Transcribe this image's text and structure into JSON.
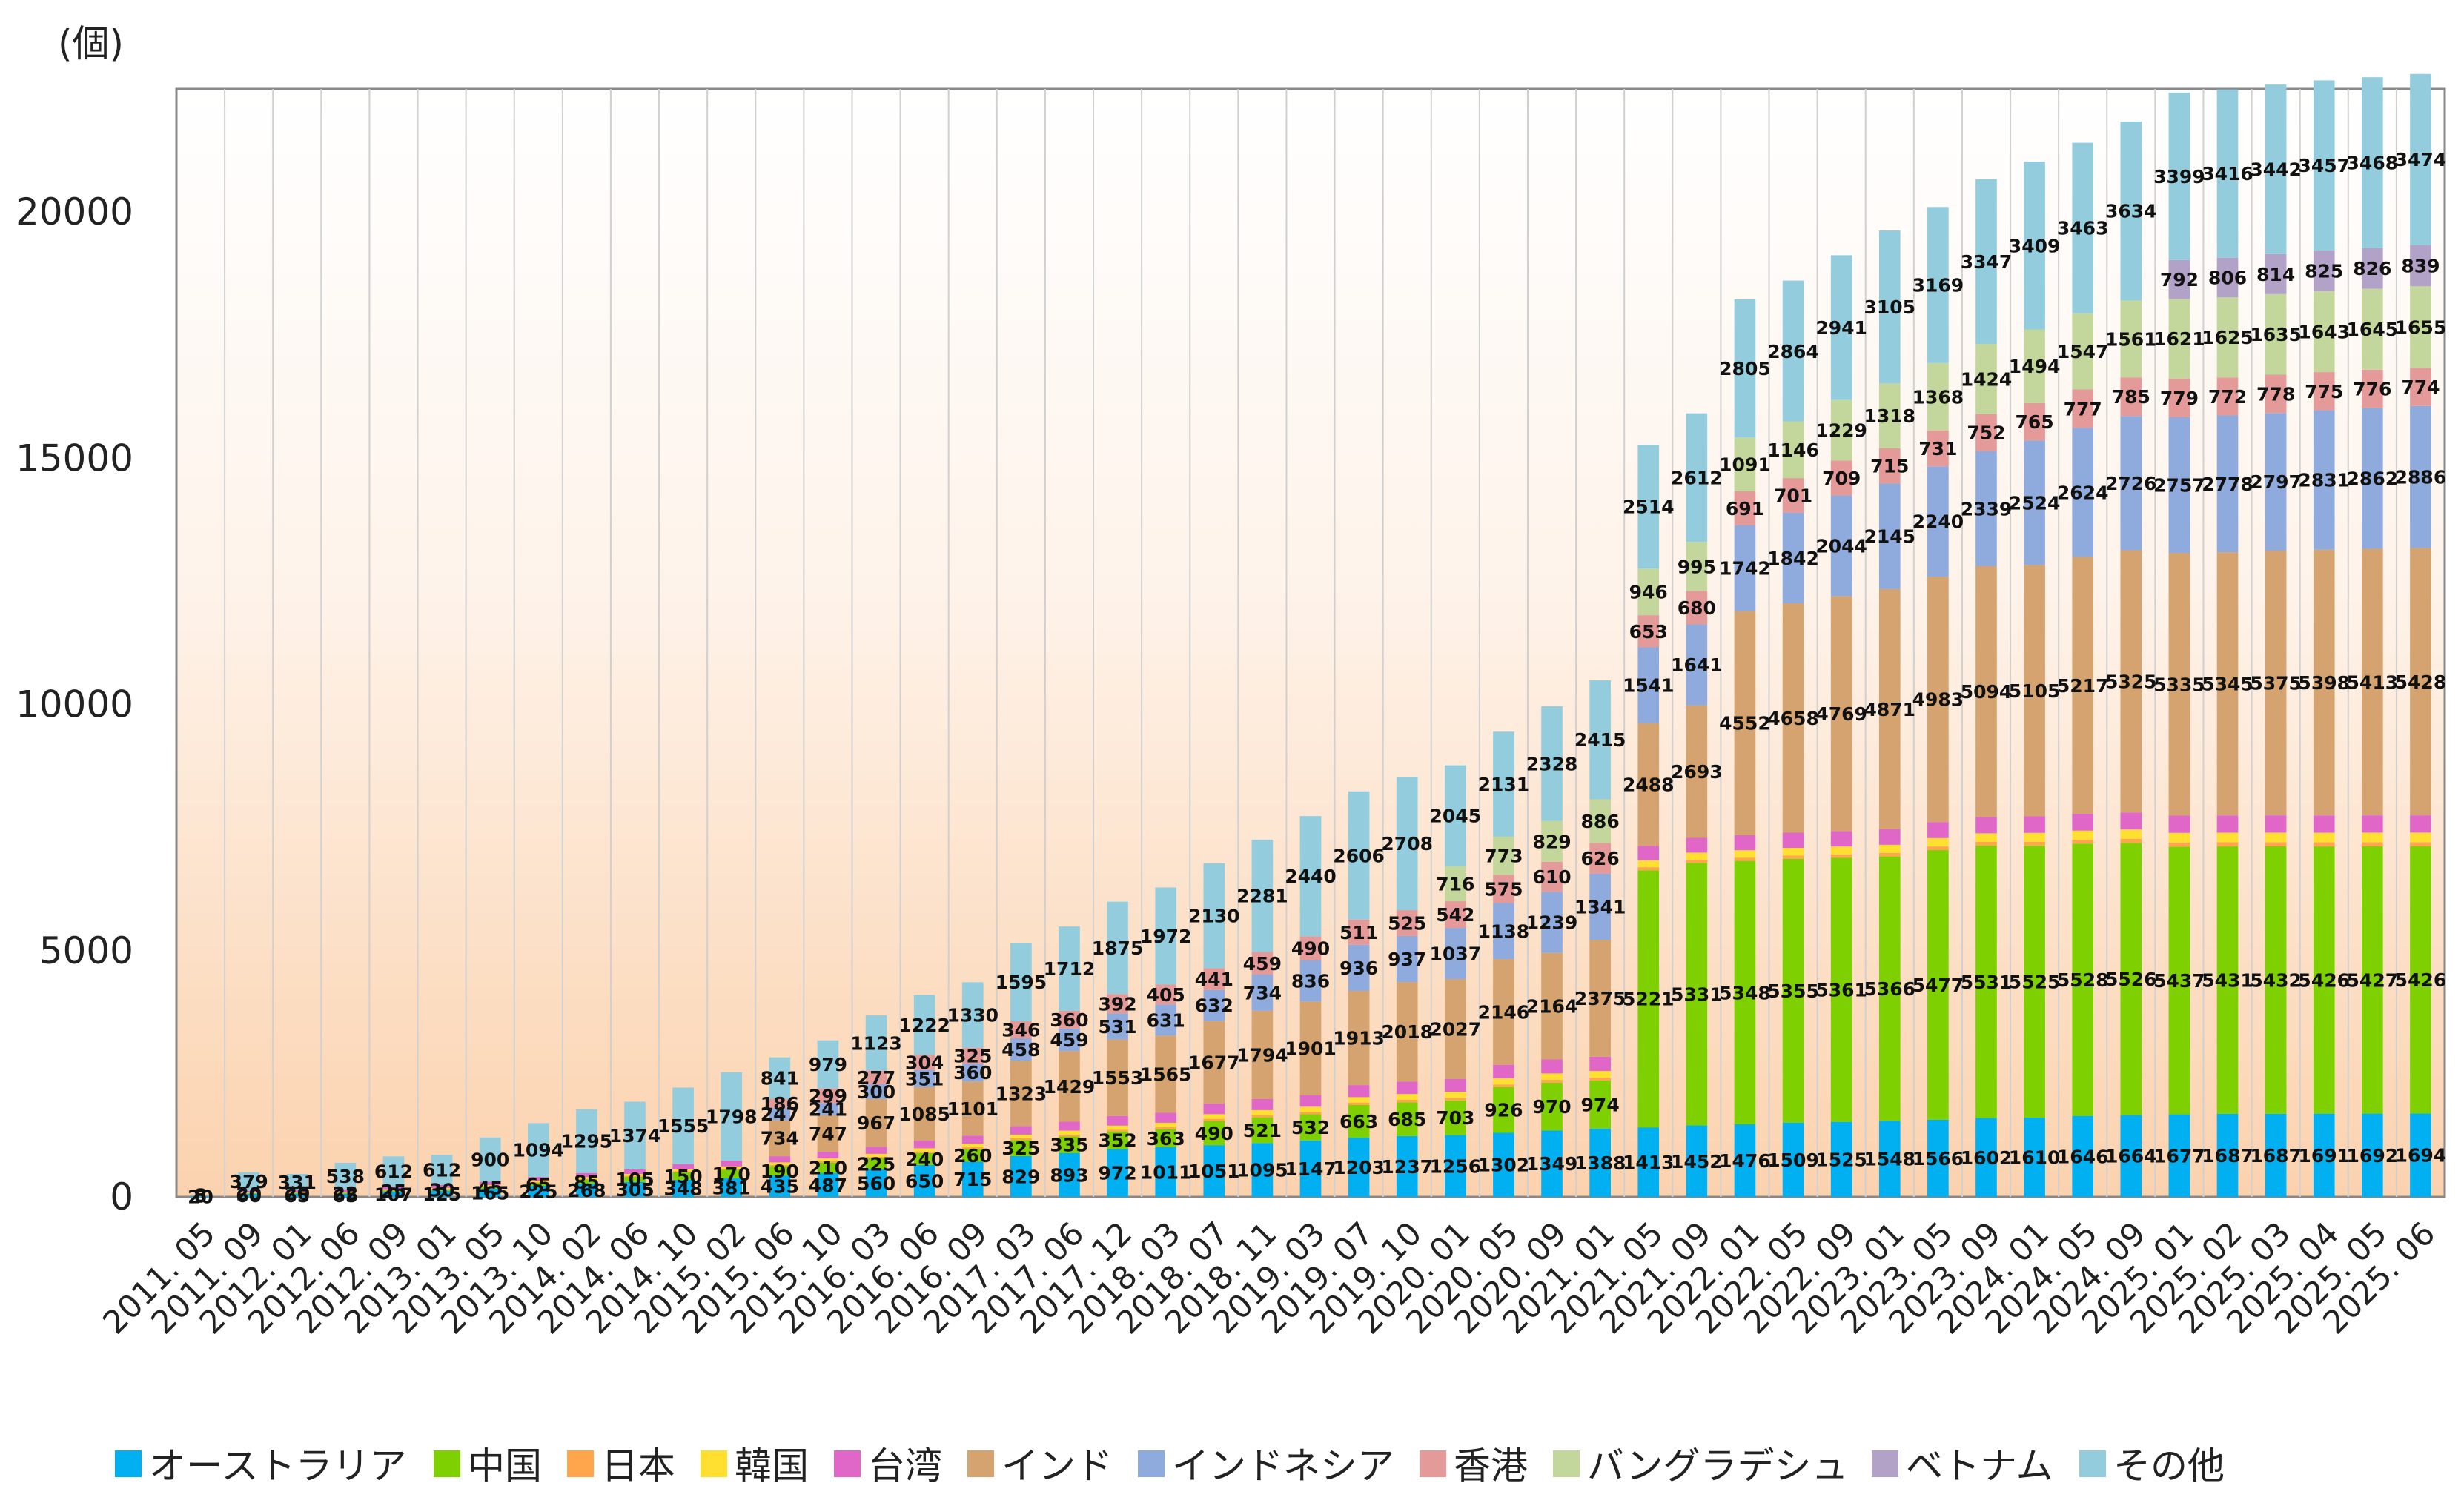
{
  "chart_data": {
    "type": "bar",
    "stacked": true,
    "unit_label": "(個)",
    "title": "",
    "xlabel": "",
    "ylabel": "",
    "ylim": [
      0,
      22500
    ],
    "yticks": [
      0,
      5000,
      10000,
      15000,
      20000
    ],
    "grid": "vertical",
    "legend_position": "bottom",
    "categories": [
      "2011.05",
      "2011.09",
      "2012.01",
      "2012.06",
      "2012.09",
      "2013.01",
      "2013.05",
      "2013.10",
      "2014.02",
      "2014.06",
      "2014.10",
      "2015.02",
      "2015.06",
      "2015.10",
      "2016.03",
      "2016.06",
      "2016.09",
      "2017.03",
      "2017.06",
      "2017.12",
      "2018.03",
      "2018.07",
      "2018.11",
      "2019.03",
      "2019.07",
      "2019.10",
      "2020.01",
      "2020.05",
      "2020.09",
      "2021.01",
      "2021.05",
      "2021.09",
      "2022.01",
      "2022.05",
      "2022.09",
      "2023.01",
      "2023.05",
      "2023.09",
      "2024.01",
      "2024.05",
      "2024.09",
      "2025.01",
      "2025.02",
      "2025.03",
      "2025.04",
      "2025.05",
      "2025.06"
    ],
    "series": [
      {
        "name": "オーストラリア",
        "color": "#00b0f0",
        "values": [
          20,
          60,
          65,
          65,
          107,
          125,
          165,
          225,
          268,
          305,
          348,
          381,
          435,
          487,
          560,
          650,
          715,
          829,
          893,
          972,
          1011,
          1051,
          1095,
          1147,
          1203,
          1237,
          1256,
          1302,
          1349,
          1388,
          1413,
          1452,
          1476,
          1509,
          1525,
          1548,
          1566,
          1602,
          1610,
          1646,
          1664,
          1677,
          1687,
          1687,
          1691,
          1692,
          1694
        ]
      },
      {
        "name": "中国",
        "color": "#7ed000",
        "values": [
          5,
          20,
          20,
          22,
          25,
          30,
          45,
          65,
          85,
          105,
          150,
          170,
          190,
          210,
          225,
          240,
          260,
          325,
          335,
          352,
          363,
          490,
          521,
          532,
          663,
          685,
          703,
          926,
          970,
          974,
          5221,
          5331,
          5348,
          5355,
          5361,
          5366,
          5477,
          5531,
          5525,
          5528,
          5526,
          5437,
          5431,
          5432,
          5426,
          5427,
          5426
        ]
      },
      {
        "name": "日本",
        "color": "#ffa64d",
        "values": [
          2,
          5,
          5,
          6,
          8,
          10,
          12,
          15,
          18,
          20,
          22,
          24,
          26,
          28,
          30,
          32,
          34,
          36,
          38,
          40,
          42,
          44,
          46,
          48,
          50,
          52,
          54,
          56,
          58,
          60,
          62,
          64,
          66,
          68,
          70,
          72,
          74,
          76,
          78,
          80,
          82,
          84,
          84,
          84,
          84,
          84,
          84
        ]
      },
      {
        "name": "韓国",
        "color": "#ffe030",
        "values": [
          2,
          8,
          10,
          12,
          15,
          18,
          20,
          25,
          30,
          35,
          40,
          45,
          50,
          55,
          60,
          65,
          70,
          75,
          80,
          85,
          90,
          95,
          100,
          105,
          110,
          115,
          120,
          125,
          130,
          135,
          140,
          145,
          150,
          155,
          160,
          165,
          170,
          175,
          180,
          185,
          190,
          195,
          195,
          195,
          195,
          195,
          195
        ]
      },
      {
        "name": "台湾",
        "color": "#e066c8",
        "values": [
          2,
          30,
          35,
          50,
          55,
          60,
          65,
          75,
          85,
          95,
          105,
          115,
          125,
          135,
          145,
          155,
          165,
          175,
          185,
          195,
          205,
          215,
          225,
          235,
          245,
          255,
          265,
          275,
          285,
          290,
          295,
          300,
          305,
          310,
          315,
          320,
          325,
          330,
          335,
          340,
          345,
          350,
          350,
          350,
          350,
          350,
          350
        ]
      },
      {
        "name": "インド",
        "color": "#d4a370",
        "values": [
          0,
          0,
          0,
          0,
          0,
          0,
          0,
          0,
          0,
          0,
          0,
          0,
          734,
          747,
          967,
          1085,
          1101,
          1323,
          1429,
          1553,
          1565,
          1677,
          1794,
          1901,
          1913,
          2018,
          2027,
          2146,
          2164,
          2375,
          2488,
          2693,
          4552,
          4658,
          4769,
          4871,
          4983,
          5094,
          5105,
          5217,
          5325,
          5335,
          5345,
          5375,
          5398,
          5413,
          5428
        ]
      },
      {
        "name": "インドネシア",
        "color": "#8faadc",
        "values": [
          0,
          0,
          0,
          0,
          0,
          0,
          0,
          0,
          0,
          0,
          0,
          0,
          247,
          241,
          300,
          351,
          360,
          458,
          459,
          531,
          631,
          632,
          734,
          836,
          936,
          937,
          1037,
          1138,
          1239,
          1341,
          1541,
          1641,
          1742,
          1842,
          2044,
          2145,
          2240,
          2339,
          2524,
          2624,
          2726,
          2757,
          2778,
          2797,
          2831,
          2862,
          2886
        ]
      },
      {
        "name": "香港",
        "color": "#e59a9a",
        "values": [
          0,
          0,
          0,
          0,
          0,
          0,
          0,
          0,
          0,
          0,
          0,
          0,
          186,
          299,
          277,
          304,
          325,
          346,
          360,
          392,
          405,
          441,
          459,
          490,
          511,
          525,
          542,
          575,
          610,
          626,
          653,
          680,
          691,
          701,
          709,
          715,
          731,
          752,
          765,
          777,
          785,
          779,
          772,
          778,
          775,
          776,
          774
        ]
      },
      {
        "name": "バングラデシュ",
        "color": "#c3d69b",
        "values": [
          0,
          0,
          0,
          0,
          0,
          0,
          0,
          0,
          0,
          0,
          0,
          0,
          0,
          0,
          0,
          0,
          0,
          0,
          0,
          0,
          0,
          0,
          0,
          0,
          0,
          0,
          716,
          773,
          829,
          886,
          946,
          995,
          1091,
          1146,
          1229,
          1318,
          1368,
          1424,
          1494,
          1547,
          1561,
          1621,
          1625,
          1635,
          1643,
          1645,
          1655
        ]
      },
      {
        "name": "ベトナム",
        "color": "#b3a2c7",
        "values": [
          0,
          0,
          0,
          0,
          0,
          0,
          0,
          0,
          0,
          0,
          0,
          0,
          0,
          0,
          0,
          0,
          0,
          0,
          0,
          0,
          0,
          0,
          0,
          0,
          0,
          0,
          0,
          0,
          0,
          0,
          0,
          0,
          0,
          0,
          0,
          0,
          0,
          0,
          0,
          0,
          0,
          792,
          806,
          814,
          825,
          826,
          839
        ]
      },
      {
        "name": "その他",
        "color": "#93cddd",
        "values": [
          8,
          379,
          331,
          538,
          612,
          612,
          900,
          1094,
          1295,
          1374,
          1555,
          1798,
          841,
          979,
          1123,
          1222,
          1330,
          1595,
          1712,
          1875,
          1972,
          2130,
          2281,
          2440,
          2606,
          2708,
          2045,
          2131,
          2328,
          2415,
          2514,
          2612,
          2805,
          2864,
          2941,
          3105,
          3169,
          3347,
          3409,
          3463,
          3634,
          3399,
          3416,
          3442,
          3457,
          3468,
          3474
        ]
      }
    ]
  }
}
